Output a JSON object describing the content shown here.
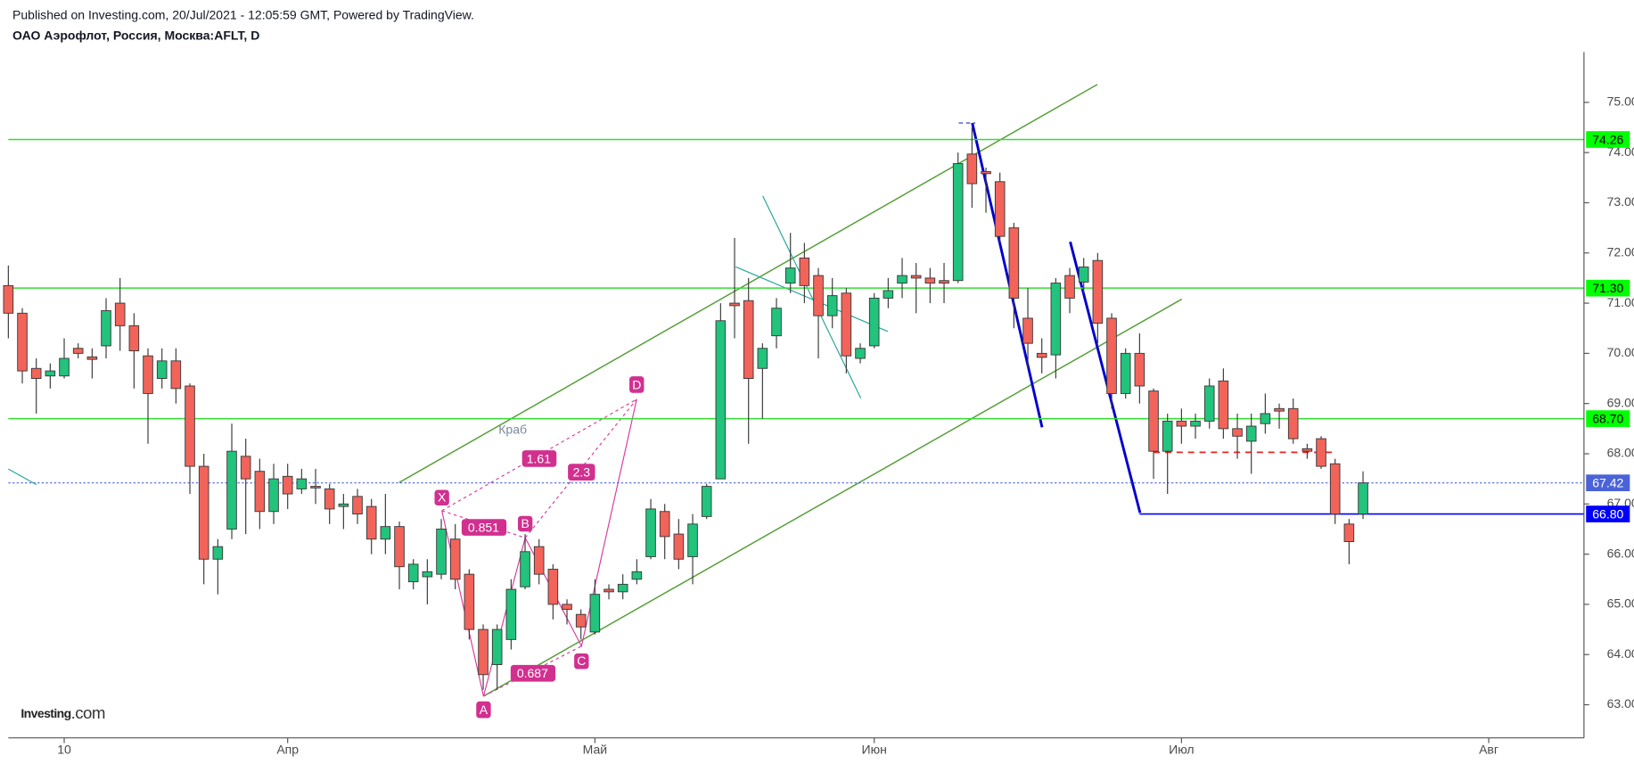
{
  "header": {
    "published": "Published on Investing.com, 20/Jul/2021 - 12:05:59 GMT, Powered by TradingView.",
    "symbol": "ОАО Аэрофлот, Россия, Москва:AFLT, D"
  },
  "logo": [
    "Investing",
    ".com"
  ],
  "pattern": {
    "name": "Краб",
    "points": [
      "X",
      "A",
      "B",
      "C",
      "D"
    ],
    "ratios": [
      "1.61",
      "2.3",
      "0.851",
      "0.687"
    ]
  },
  "chart_data": {
    "type": "candlestick",
    "x": [
      0,
      1,
      2,
      3,
      4,
      5,
      6,
      7,
      8,
      9,
      10,
      11,
      12,
      13,
      14,
      15,
      16,
      17,
      18,
      19,
      20,
      21,
      22,
      23,
      24,
      25,
      26,
      27,
      28,
      29,
      30,
      31,
      32,
      33,
      34,
      35,
      36,
      37,
      38,
      39,
      40,
      41,
      42,
      43,
      44,
      45,
      46,
      47,
      48,
      49,
      50,
      51,
      52,
      53,
      54,
      55,
      56,
      57,
      58,
      59,
      60,
      61,
      62,
      63,
      64,
      65,
      66,
      67,
      68,
      69,
      70,
      71,
      72,
      73,
      74,
      75,
      76,
      77,
      78,
      79,
      80,
      81,
      82,
      83,
      84,
      85,
      86,
      87,
      88,
      89,
      90,
      91,
      92,
      93,
      94,
      95,
      96,
      97
    ],
    "open": [
      71.35,
      70.8,
      69.7,
      69.55,
      69.55,
      70.1,
      69.93,
      70.15,
      71.0,
      70.55,
      69.95,
      69.5,
      69.85,
      69.35,
      67.75,
      65.9,
      66.5,
      67.95,
      67.65,
      66.85,
      67.55,
      67.3,
      67.35,
      67.3,
      66.95,
      67.15,
      66.95,
      66.3,
      66.55,
      65.45,
      65.55,
      65.6,
      66.3,
      65.6,
      64.5,
      63.8,
      64.3,
      65.35,
      66.15,
      65.7,
      65.0,
      64.8,
      64.45,
      65.3,
      65.25,
      65.5,
      65.95,
      66.85,
      66.4,
      65.95,
      66.75,
      67.5,
      71.0,
      71.05,
      69.7,
      70.35,
      71.4,
      71.9,
      71.55,
      70.75,
      71.2,
      69.9,
      70.15,
      71.1,
      71.4,
      71.55,
      71.5,
      71.45,
      71.45,
      73.97,
      73.62,
      73.42,
      72.5,
      70.7,
      70.0,
      69.97,
      71.55,
      71.42,
      71.85,
      70.7,
      69.2,
      70.0,
      69.25,
      68.05,
      68.65,
      68.55,
      68.65,
      69.45,
      68.5,
      68.25,
      68.6,
      68.9,
      68.9,
      68.1,
      68.3,
      67.8,
      66.6,
      66.8
    ],
    "high": [
      71.75,
      70.9,
      69.9,
      69.8,
      70.3,
      70.2,
      70.1,
      71.1,
      71.5,
      70.8,
      70.1,
      70.1,
      70.1,
      69.4,
      68.0,
      66.3,
      68.6,
      68.3,
      67.9,
      67.8,
      67.8,
      67.7,
      67.7,
      67.4,
      67.2,
      67.3,
      67.1,
      67.2,
      66.65,
      65.9,
      65.9,
      66.7,
      66.6,
      65.7,
      64.6,
      64.6,
      65.5,
      66.4,
      66.3,
      65.8,
      65.1,
      64.9,
      65.5,
      65.4,
      65.6,
      65.9,
      67.1,
      67.0,
      66.7,
      66.8,
      67.4,
      71.0,
      72.3,
      71.5,
      70.2,
      71.1,
      72.4,
      72.2,
      71.7,
      71.5,
      71.3,
      70.2,
      71.2,
      71.5,
      71.9,
      71.8,
      71.7,
      71.8,
      74.0,
      74.5,
      73.7,
      73.6,
      72.6,
      71.3,
      70.3,
      71.5,
      71.7,
      71.9,
      72.0,
      70.8,
      70.1,
      70.4,
      69.3,
      68.8,
      68.9,
      68.8,
      69.5,
      69.7,
      68.8,
      68.8,
      69.2,
      69.0,
      69.1,
      68.2,
      68.35,
      67.9,
      66.7,
      67.65
    ],
    "low": [
      70.3,
      69.4,
      68.8,
      69.3,
      69.5,
      69.9,
      69.5,
      69.9,
      70.05,
      69.3,
      68.2,
      69.3,
      69.0,
      67.2,
      65.4,
      65.2,
      66.3,
      66.4,
      66.5,
      66.6,
      66.9,
      67.2,
      67.0,
      66.6,
      66.5,
      66.6,
      66.0,
      66.0,
      65.3,
      65.3,
      65.0,
      65.5,
      65.3,
      64.3,
      63.3,
      63.3,
      64.1,
      65.3,
      65.4,
      64.7,
      64.6,
      64.3,
      64.4,
      65.1,
      65.1,
      65.4,
      65.9,
      65.9,
      65.7,
      65.4,
      66.7,
      67.5,
      70.3,
      68.2,
      68.7,
      70.1,
      71.2,
      71.0,
      69.9,
      70.5,
      69.6,
      69.8,
      70.1,
      70.9,
      71.1,
      70.8,
      71.0,
      71.0,
      71.4,
      72.9,
      72.8,
      72.2,
      70.5,
      69.7,
      69.6,
      69.5,
      70.8,
      71.2,
      70.2,
      68.9,
      69.1,
      69.0,
      67.5,
      67.2,
      68.2,
      68.3,
      68.5,
      68.3,
      67.9,
      67.6,
      68.4,
      68.5,
      68.2,
      67.9,
      67.7,
      66.6,
      65.8,
      66.7
    ],
    "close": [
      70.8,
      69.65,
      69.5,
      69.65,
      69.9,
      70.0,
      69.88,
      70.85,
      70.55,
      70.05,
      69.2,
      69.85,
      69.3,
      67.75,
      65.9,
      66.15,
      68.05,
      67.5,
      66.85,
      67.5,
      67.2,
      67.5,
      67.33,
      66.9,
      67.0,
      66.8,
      66.3,
      66.55,
      65.75,
      65.8,
      65.65,
      66.5,
      65.5,
      64.5,
      63.6,
      64.5,
      65.3,
      66.05,
      65.6,
      65.0,
      64.9,
      64.55,
      65.2,
      65.25,
      65.4,
      65.65,
      66.9,
      66.35,
      65.9,
      66.6,
      67.35,
      70.65,
      70.95,
      69.5,
      70.1,
      70.9,
      71.7,
      71.35,
      70.75,
      71.15,
      69.95,
      70.1,
      71.1,
      71.25,
      71.55,
      71.5,
      71.4,
      71.4,
      73.78,
      73.38,
      73.58,
      72.33,
      71.1,
      70.2,
      69.92,
      71.4,
      71.1,
      71.72,
      70.6,
      69.2,
      70.0,
      69.35,
      68.05,
      68.65,
      68.55,
      68.65,
      69.35,
      68.5,
      68.35,
      68.55,
      68.8,
      68.85,
      68.3,
      68.05,
      67.75,
      66.8,
      66.25,
      67.42
    ],
    "up_color": "#22c37c",
    "down_color": "#f2645a",
    "xlim": [
      0,
      112.82
    ],
    "xticks": [
      {
        "value": 4,
        "label": "10"
      },
      {
        "value": 20,
        "label": "Апр"
      },
      {
        "value": 42,
        "label": "Май"
      },
      {
        "value": 62,
        "label": "Июн"
      },
      {
        "value": 84,
        "label": "Июл"
      },
      {
        "value": 106,
        "label": "Авг"
      }
    ],
    "ylim": [
      62.34,
      76.0
    ],
    "yticks": [
      {
        "value": 63,
        "label": "63.00"
      },
      {
        "value": 64,
        "label": "64.00"
      },
      {
        "value": 65,
        "label": "65.00"
      },
      {
        "value": 66,
        "label": "66.00"
      },
      {
        "value": 67,
        "label": "67.00"
      },
      {
        "value": 68,
        "label": "68.00"
      },
      {
        "value": 69,
        "label": "69.00"
      },
      {
        "value": 70,
        "label": "70.00"
      },
      {
        "value": 71,
        "label": "71.00"
      },
      {
        "value": 72,
        "label": "72.00"
      },
      {
        "value": 73,
        "label": "73.00"
      },
      {
        "value": 74,
        "label": "74.00"
      },
      {
        "value": 75,
        "label": "75.00"
      }
    ],
    "hlines": [
      {
        "value": 74.26,
        "label": "74.26",
        "color": "#33dd33",
        "bg": "#00ff00"
      },
      {
        "value": 71.3,
        "label": "71.30",
        "color": "#33dd33",
        "bg": "#00ff00"
      },
      {
        "value": 68.7,
        "label": "68.70",
        "color": "#33dd33",
        "bg": "#00ff00"
      },
      {
        "value": 67.42,
        "label": "67.42",
        "color": "#4a63d9",
        "bg": "#4a63d9",
        "dotted": true
      },
      {
        "value": 66.8,
        "label": "66.80",
        "color": "#0000ff",
        "bg": "#0000ff",
        "from": 81
      }
    ]
  }
}
